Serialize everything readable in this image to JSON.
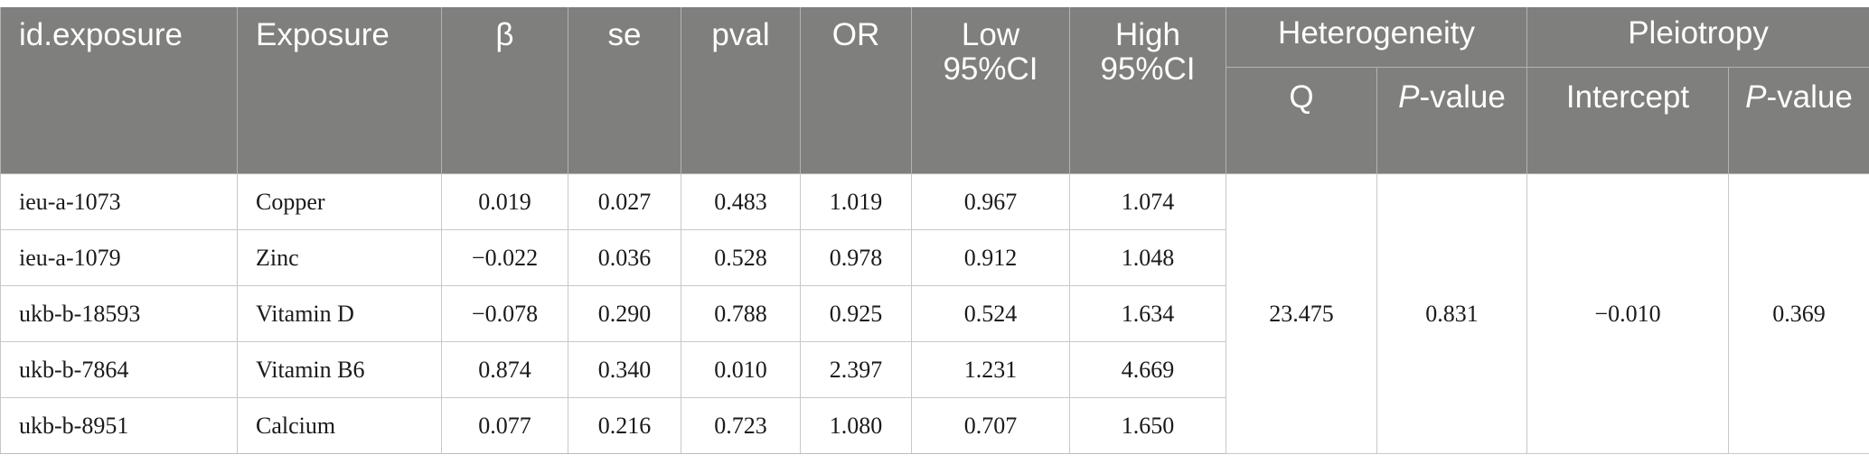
{
  "header": {
    "id_exposure": "id.exposure",
    "exposure": "Exposure",
    "beta": "β",
    "se": "se",
    "pval": "pval",
    "or": "OR",
    "low_ci": "Low 95%CI",
    "high_ci": "High 95%CI",
    "heterogeneity": "Heterogeneity",
    "het_q": "Q",
    "het_p_italic": "P",
    "het_p_rest": "-value",
    "pleiotropy": "Pleiotropy",
    "pleio_intercept": "Intercept",
    "pleio_p_italic": "P",
    "pleio_p_rest": "-value"
  },
  "rows": [
    {
      "id": "ieu-a-1073",
      "exposure": "Copper",
      "beta": "0.019",
      "se": "0.027",
      "pval": "0.483",
      "or": "1.019",
      "low": "0.967",
      "high": "1.074"
    },
    {
      "id": "ieu-a-1079",
      "exposure": "Zinc",
      "beta": "−0.022",
      "se": "0.036",
      "pval": "0.528",
      "or": "0.978",
      "low": "0.912",
      "high": "1.048"
    },
    {
      "id": "ukb-b-18593",
      "exposure": "Vitamin D",
      "beta": "−0.078",
      "se": "0.290",
      "pval": "0.788",
      "or": "0.925",
      "low": "0.524",
      "high": "1.634"
    },
    {
      "id": "ukb-b-7864",
      "exposure": "Vitamin B6",
      "beta": "0.874",
      "se": "0.340",
      "pval": "0.010",
      "or": "2.397",
      "low": "1.231",
      "high": "4.669"
    },
    {
      "id": "ukb-b-8951",
      "exposure": "Calcium",
      "beta": "0.077",
      "se": "0.216",
      "pval": "0.723",
      "or": "1.080",
      "low": "0.707",
      "high": "1.650"
    }
  ],
  "summary": {
    "het_q": "23.475",
    "het_p": "0.831",
    "pleio_intercept": "−0.010",
    "pleio_p": "0.369"
  }
}
